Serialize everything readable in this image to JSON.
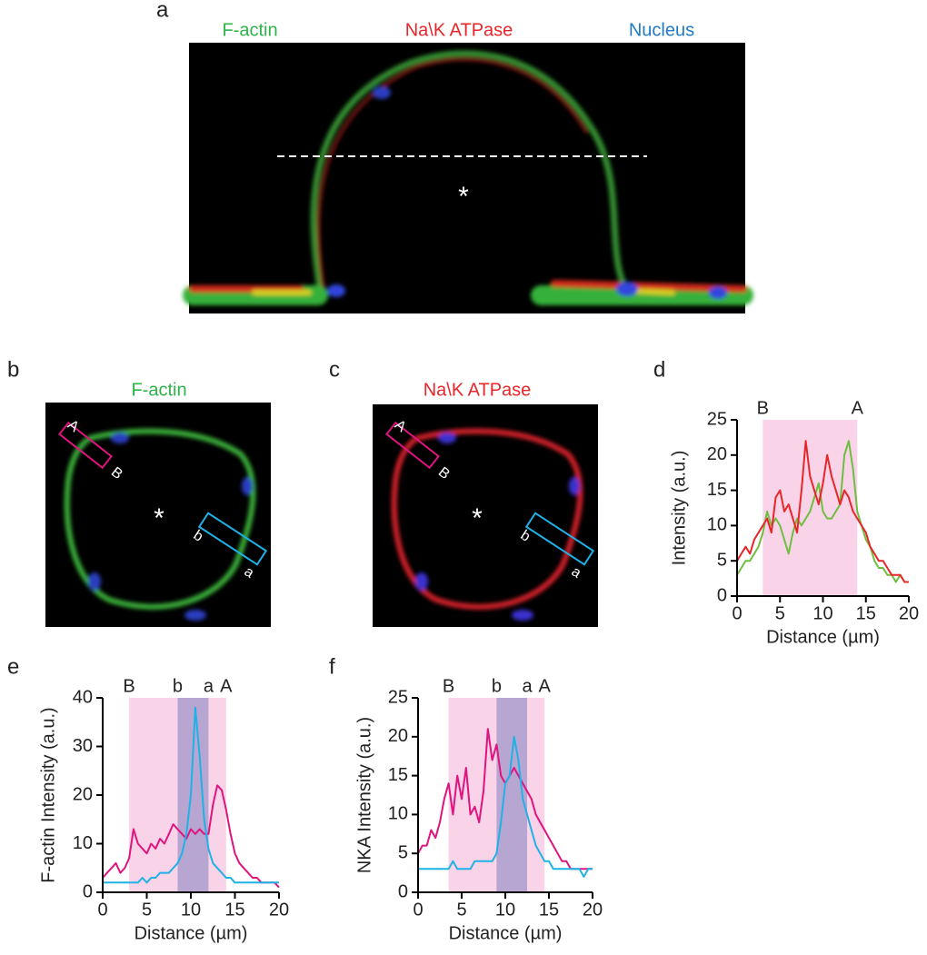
{
  "panel_a": {
    "label": "a",
    "channels": [
      "F-actin",
      "Na\\K ATPase",
      "Nucleus"
    ],
    "marker": "*"
  },
  "panel_b": {
    "label": "b",
    "title": "F-actin",
    "box_1": [
      "A",
      "B"
    ],
    "box_2": [
      "b",
      "a"
    ],
    "marker": "*"
  },
  "panel_c": {
    "label": "c",
    "title": "Na\\K ATPase",
    "box_1": [
      "A",
      "B"
    ],
    "box_2": [
      "b",
      "a"
    ],
    "marker": "*"
  },
  "chart_data": [
    {
      "type": "line",
      "label": "d",
      "ylabel": "Intensity (a.u.)",
      "xlabel": "Distance (µm)",
      "xlim": [
        0,
        20
      ],
      "xticks": [
        0,
        5,
        10,
        15,
        20
      ],
      "ylim": [
        0,
        25
      ],
      "yticks": [
        0,
        5,
        10,
        15,
        20,
        25
      ],
      "regions": [
        {
          "x": [
            3,
            14
          ],
          "color": "#f9d3e8",
          "labels": [
            "B",
            "A"
          ]
        }
      ],
      "x": [
        0,
        0.5,
        1,
        1.5,
        2,
        2.5,
        3,
        3.5,
        4,
        4.5,
        5,
        5.5,
        6,
        6.5,
        7,
        7.5,
        8,
        8.5,
        9,
        9.5,
        10,
        10.5,
        11,
        11.5,
        12,
        12.5,
        13,
        13.5,
        14,
        14.5,
        15,
        15.5,
        16,
        16.5,
        17,
        17.5,
        18,
        18.5,
        19,
        19.5,
        20
      ],
      "series": [
        {
          "color": "#6cbf3f",
          "values": [
            3,
            4,
            5,
            5,
            6,
            7,
            9,
            12,
            10,
            11,
            10,
            8,
            6,
            9,
            11,
            10,
            11,
            12,
            14,
            16,
            12,
            11,
            11,
            12,
            13,
            20,
            22,
            18,
            12,
            10,
            8,
            7,
            5,
            4,
            4,
            3,
            3,
            2,
            3,
            2,
            2
          ]
        },
        {
          "color": "#e8262a",
          "values": [
            5,
            6,
            7,
            6,
            8,
            9,
            10,
            11,
            9,
            14,
            15,
            12,
            13,
            11,
            9,
            15,
            22,
            17,
            15,
            13,
            16,
            20,
            17,
            15,
            13,
            15,
            14,
            12,
            11,
            10,
            9,
            7,
            6,
            5,
            5,
            4,
            3,
            3,
            3,
            2,
            2
          ]
        }
      ]
    },
    {
      "type": "line",
      "label": "e",
      "ylabel": "F-actin Intensity (a.u.)",
      "xlabel": "Distance (µm)",
      "xlim": [
        0,
        20
      ],
      "xticks": [
        0,
        5,
        10,
        15,
        20
      ],
      "ylim": [
        0,
        40
      ],
      "yticks": [
        0,
        10,
        20,
        30,
        40
      ],
      "regions": [
        {
          "x": [
            3,
            14
          ],
          "color": "#f9d3e8",
          "labels": [
            "B",
            "A"
          ]
        },
        {
          "x": [
            8.5,
            12
          ],
          "color": "#b7a5d2",
          "labels": [
            "b",
            "a"
          ]
        }
      ],
      "x": [
        0,
        0.5,
        1,
        1.5,
        2,
        2.5,
        3,
        3.5,
        4,
        4.5,
        5,
        5.5,
        6,
        6.5,
        7,
        7.5,
        8,
        8.5,
        9,
        9.5,
        10,
        10.5,
        11,
        11.5,
        12,
        12.5,
        13,
        13.5,
        14,
        14.5,
        15,
        15.5,
        16,
        16.5,
        17,
        17.5,
        18,
        18.5,
        19,
        19.5,
        20
      ],
      "series": [
        {
          "color": "#e0137f",
          "values": [
            3,
            4,
            5,
            6,
            4,
            5,
            7,
            13,
            10,
            9,
            8,
            10,
            9,
            11,
            10,
            12,
            14,
            13,
            12,
            11,
            13,
            12,
            13,
            12,
            12,
            18,
            22,
            21,
            17,
            12,
            8,
            6,
            5,
            4,
            3,
            3,
            2,
            2,
            2,
            2,
            1
          ]
        },
        {
          "color": "#1fb2e6",
          "values": [
            2,
            2,
            2,
            2,
            2,
            2,
            2,
            2,
            2,
            3,
            2,
            3,
            3,
            4,
            4,
            4,
            5,
            6,
            8,
            12,
            20,
            38,
            28,
            15,
            9,
            6,
            5,
            4,
            3,
            3,
            2,
            2,
            2,
            2,
            2,
            2,
            2,
            2,
            2,
            2,
            2
          ]
        }
      ]
    },
    {
      "type": "line",
      "label": "f",
      "ylabel": "NKA Intensity (a.u.)",
      "xlabel": "Distance (µm)",
      "xlim": [
        0,
        20
      ],
      "xticks": [
        0,
        5,
        10,
        15,
        20
      ],
      "ylim": [
        0,
        25
      ],
      "yticks": [
        0,
        5,
        10,
        15,
        20,
        25
      ],
      "regions": [
        {
          "x": [
            3.5,
            14.5
          ],
          "color": "#f9d3e8",
          "labels": [
            "B",
            "A"
          ]
        },
        {
          "x": [
            9,
            12.5
          ],
          "color": "#b7a5d2",
          "labels": [
            "b",
            "a"
          ]
        }
      ],
      "x": [
        0,
        0.5,
        1,
        1.5,
        2,
        2.5,
        3,
        3.5,
        4,
        4.5,
        5,
        5.5,
        6,
        6.5,
        7,
        7.5,
        8,
        8.5,
        9,
        9.5,
        10,
        10.5,
        11,
        11.5,
        12,
        12.5,
        13,
        13.5,
        14,
        14.5,
        15,
        15.5,
        16,
        16.5,
        17,
        17.5,
        18,
        18.5,
        19,
        19.5,
        20
      ],
      "series": [
        {
          "color": "#e0137f",
          "values": [
            5,
            6,
            6,
            8,
            7,
            9,
            12,
            14,
            10,
            15,
            12,
            16,
            10,
            11,
            9,
            13,
            21,
            17,
            19,
            15,
            14,
            15,
            16,
            15,
            14,
            13,
            12,
            10,
            9,
            8,
            7,
            6,
            5,
            4,
            4,
            3,
            3,
            3,
            3,
            3,
            3
          ]
        },
        {
          "color": "#1fb2e6",
          "values": [
            3,
            3,
            3,
            3,
            3,
            3,
            3,
            3,
            4,
            3,
            3,
            3,
            3,
            4,
            4,
            4,
            4,
            4,
            5,
            9,
            14,
            15,
            20,
            17,
            12,
            10,
            8,
            6,
            5,
            4,
            4,
            3,
            3,
            3,
            3,
            3,
            3,
            3,
            2,
            3,
            3
          ]
        }
      ]
    }
  ]
}
